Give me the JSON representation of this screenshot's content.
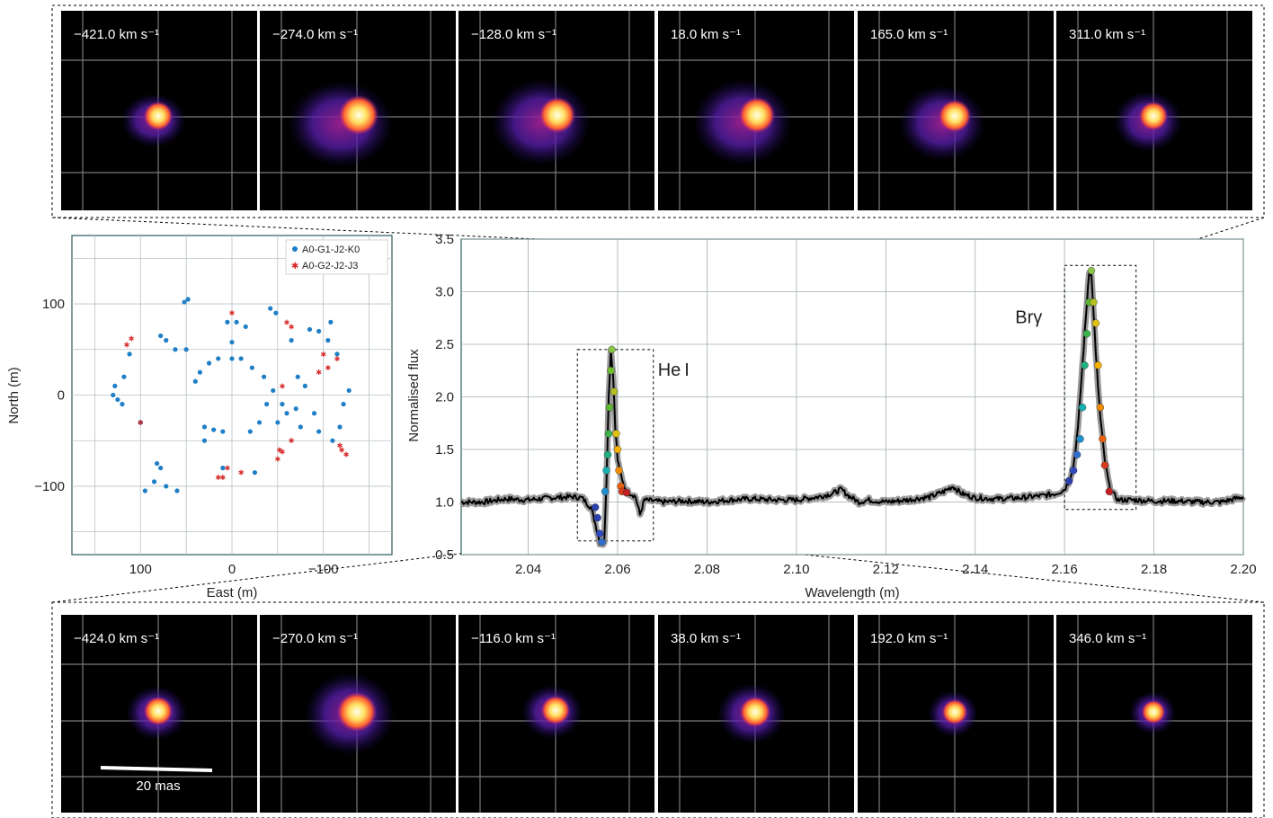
{
  "colors": {
    "baseline_line": "#000000",
    "baseline_markers": "#8a8a8a",
    "grid": "#8c9aa0",
    "panel_frame": "#2c5a5a",
    "uv_blue": "#1f7fc6",
    "uv_red": "#d62828",
    "image_background": "#000000"
  },
  "image_panels": {
    "top_row": {
      "velocities": [
        "−421.0 km s⁻¹",
        "−274.0 km s⁻¹",
        "−128.0 km s⁻¹",
        "18.0 km s⁻¹",
        "165.0 km s⁻¹",
        "311.0 km s⁻¹"
      ]
    },
    "bottom_row": {
      "velocities": [
        "−424.0 km s⁻¹",
        "−270.0 km s⁻¹",
        "−116.0 km s⁻¹",
        "38.0 km s⁻¹",
        "192.0 km s⁻¹",
        "346.0 km s⁻¹"
      ],
      "scale_bar_label": "20 mas"
    }
  },
  "chart_data": [
    {
      "type": "scatter",
      "xlabel": "East (m)",
      "ylabel": "North (m)",
      "xlim": [
        175,
        -175
      ],
      "ylim": [
        -175,
        175
      ],
      "xticks": [
        100,
        0,
        -100
      ],
      "xtick_labels": [
        "100",
        "0",
        "−100"
      ],
      "yticks": [
        100,
        0,
        -100
      ],
      "ytick_labels": [
        "100",
        "0",
        "−100"
      ],
      "grid": true,
      "legend": "top-right",
      "series": [
        {
          "name": "A0-G1-J2-K0",
          "marker": "dot",
          "x": [
            52,
            48,
            78,
            72,
            62,
            -42,
            -48,
            -72,
            -80,
            -90,
            -95,
            -110,
            -118,
            -122,
            -128,
            -115,
            -105,
            -108,
            -85,
            -95,
            -65,
            -70,
            -55,
            -60,
            -50,
            -75,
            130,
            128,
            118,
            112,
            82,
            78,
            72,
            60,
            95,
            85,
            40,
            35,
            25,
            15,
            0,
            -10,
            -22,
            -35,
            -45,
            -38,
            -30,
            -20,
            10,
            20,
            30,
            5,
            -5,
            -15,
            0,
            50,
            30,
            100,
            125,
            120,
            10,
            -25
          ],
          "y": [
            102,
            105,
            65,
            60,
            50,
            95,
            90,
            20,
            10,
            -20,
            -40,
            -50,
            -35,
            -10,
            5,
            45,
            60,
            80,
            72,
            70,
            60,
            -15,
            -10,
            -20,
            -30,
            -35,
            0,
            10,
            20,
            45,
            -75,
            -80,
            -100,
            -105,
            -105,
            -95,
            15,
            25,
            35,
            40,
            40,
            40,
            30,
            20,
            5,
            -10,
            -30,
            -40,
            -40,
            -38,
            -35,
            80,
            80,
            75,
            58,
            50,
            -50,
            -30,
            -5,
            -10,
            -80,
            -85
          ]
        },
        {
          "name": "A0-G2-J2-J3",
          "marker": "star",
          "x": [
            115,
            110,
            100,
            -100,
            -95,
            -65,
            -55,
            -50,
            -52,
            0,
            10,
            15,
            -55,
            -105,
            -115,
            -118,
            -120,
            -125,
            -60,
            -65,
            5,
            -10
          ],
          "y": [
            55,
            62,
            -30,
            45,
            25,
            -50,
            -62,
            -70,
            -60,
            90,
            -90,
            -90,
            10,
            30,
            40,
            -55,
            -60,
            -65,
            80,
            75,
            -80,
            -85
          ]
        }
      ]
    },
    {
      "type": "line",
      "xlabel": "Wavelength (m)",
      "ylabel": "Normalised flux",
      "xlim": [
        2.025,
        2.2
      ],
      "ylim": [
        0.5,
        3.5
      ],
      "xticks": [
        2.04,
        2.06,
        2.08,
        2.1,
        2.12,
        2.14,
        2.16,
        2.18,
        2.2
      ],
      "xtick_labels": [
        "2.04",
        "2.06",
        "2.08",
        "2.10",
        "2.12",
        "2.14",
        "2.16",
        "2.18",
        "2.20"
      ],
      "yticks": [
        0.5,
        1.0,
        1.5,
        2.0,
        2.5,
        3.0,
        3.5
      ],
      "ytick_labels": [
        "0.5",
        "1.0",
        "1.5",
        "2.0",
        "2.5",
        "3.0",
        "3.5"
      ],
      "grid": true,
      "annotations": [
        {
          "text": "He I",
          "x": 2.069,
          "y": 2.2
        },
        {
          "text": "Brγ",
          "x": 2.155,
          "y": 2.7
        }
      ],
      "boxes": [
        {
          "x": [
            2.051,
            2.068
          ],
          "y": [
            0.63,
            2.45
          ]
        },
        {
          "x": [
            2.16,
            2.176
          ],
          "y": [
            0.93,
            3.25
          ]
        }
      ],
      "x": [
        2.025,
        2.03,
        2.035,
        2.04,
        2.045,
        2.05,
        2.052,
        2.054,
        2.055,
        2.056,
        2.057,
        2.0575,
        2.058,
        2.0585,
        2.059,
        2.0595,
        2.06,
        2.061,
        2.062,
        2.063,
        2.064,
        2.065,
        2.066,
        2.07,
        2.075,
        2.08,
        2.085,
        2.09,
        2.095,
        2.1,
        2.105,
        2.108,
        2.11,
        2.112,
        2.114,
        2.116,
        2.12,
        2.125,
        2.13,
        2.133,
        2.135,
        2.137,
        2.14,
        2.145,
        2.15,
        2.155,
        2.158,
        2.16,
        2.161,
        2.162,
        2.163,
        2.164,
        2.165,
        2.1655,
        2.166,
        2.1665,
        2.167,
        2.168,
        2.169,
        2.17,
        2.171,
        2.172,
        2.175,
        2.18,
        2.185,
        2.19,
        2.195,
        2.2
      ],
      "y": [
        1.0,
        1.0,
        1.03,
        1.02,
        1.04,
        1.05,
        1.04,
        0.95,
        0.8,
        0.62,
        0.6,
        1.2,
        2.0,
        2.45,
        2.2,
        1.7,
        1.4,
        1.2,
        1.1,
        1.08,
        1.05,
        0.88,
        1.02,
        1.0,
        1.01,
        1.0,
        1.02,
        1.03,
        1.02,
        1.02,
        1.05,
        1.08,
        1.12,
        1.05,
        1.0,
        1.02,
        1.0,
        1.02,
        1.05,
        1.1,
        1.15,
        1.08,
        1.04,
        1.03,
        1.04,
        1.06,
        1.08,
        1.12,
        1.2,
        1.35,
        1.7,
        2.3,
        2.9,
        3.2,
        3.15,
        2.8,
        2.4,
        1.8,
        1.4,
        1.15,
        1.07,
        1.02,
        1.02,
        1.01,
        1.01,
        1.0,
        1.0,
        1.05
      ],
      "colored_points": {
        "hei": [
          {
            "x": 2.055,
            "y": 0.95,
            "color": "#2a3fb0"
          },
          {
            "x": 2.0555,
            "y": 0.85,
            "color": "#2a3fb0"
          },
          {
            "x": 2.056,
            "y": 0.7,
            "color": "#2f4ac0"
          },
          {
            "x": 2.0565,
            "y": 0.62,
            "color": "#2f6fd0"
          },
          {
            "x": 2.0572,
            "y": 1.1,
            "color": "#1e90d0"
          },
          {
            "x": 2.0575,
            "y": 1.3,
            "color": "#18b0b0"
          },
          {
            "x": 2.0578,
            "y": 1.45,
            "color": "#20b080"
          },
          {
            "x": 2.058,
            "y": 1.65,
            "color": "#3cb44b"
          },
          {
            "x": 2.0582,
            "y": 1.9,
            "color": "#5cb830"
          },
          {
            "x": 2.0585,
            "y": 2.25,
            "color": "#6cbf2a"
          },
          {
            "x": 2.0587,
            "y": 2.45,
            "color": "#8bc34a"
          },
          {
            "x": 2.0592,
            "y": 2.05,
            "color": "#b5c020"
          },
          {
            "x": 2.0597,
            "y": 1.65,
            "color": "#e0c010"
          },
          {
            "x": 2.06,
            "y": 1.5,
            "color": "#f5b000"
          },
          {
            "x": 2.0603,
            "y": 1.3,
            "color": "#f08c00"
          },
          {
            "x": 2.0607,
            "y": 1.15,
            "color": "#e86010"
          },
          {
            "x": 2.061,
            "y": 1.1,
            "color": "#d83a1a"
          },
          {
            "x": 2.062,
            "y": 1.09,
            "color": "#c02020"
          }
        ],
        "brg": [
          {
            "x": 2.161,
            "y": 1.2,
            "color": "#2a3fb0"
          },
          {
            "x": 2.162,
            "y": 1.3,
            "color": "#2f4ac0"
          },
          {
            "x": 2.1628,
            "y": 1.45,
            "color": "#2f6fd0"
          },
          {
            "x": 2.1635,
            "y": 1.6,
            "color": "#1e90d0"
          },
          {
            "x": 2.164,
            "y": 1.9,
            "color": "#18b0b0"
          },
          {
            "x": 2.1645,
            "y": 2.3,
            "color": "#20b080"
          },
          {
            "x": 2.165,
            "y": 2.6,
            "color": "#3cb44b"
          },
          {
            "x": 2.1655,
            "y": 2.9,
            "color": "#5cb830"
          },
          {
            "x": 2.166,
            "y": 3.2,
            "color": "#8bc34a"
          },
          {
            "x": 2.1665,
            "y": 2.9,
            "color": "#b5c020"
          },
          {
            "x": 2.167,
            "y": 2.7,
            "color": "#e0c010"
          },
          {
            "x": 2.1675,
            "y": 2.3,
            "color": "#f5b000"
          },
          {
            "x": 2.168,
            "y": 1.9,
            "color": "#f08c00"
          },
          {
            "x": 2.1685,
            "y": 1.6,
            "color": "#e86010"
          },
          {
            "x": 2.169,
            "y": 1.35,
            "color": "#d83a1a"
          },
          {
            "x": 2.17,
            "y": 1.1,
            "color": "#c02020"
          }
        ]
      }
    }
  ]
}
